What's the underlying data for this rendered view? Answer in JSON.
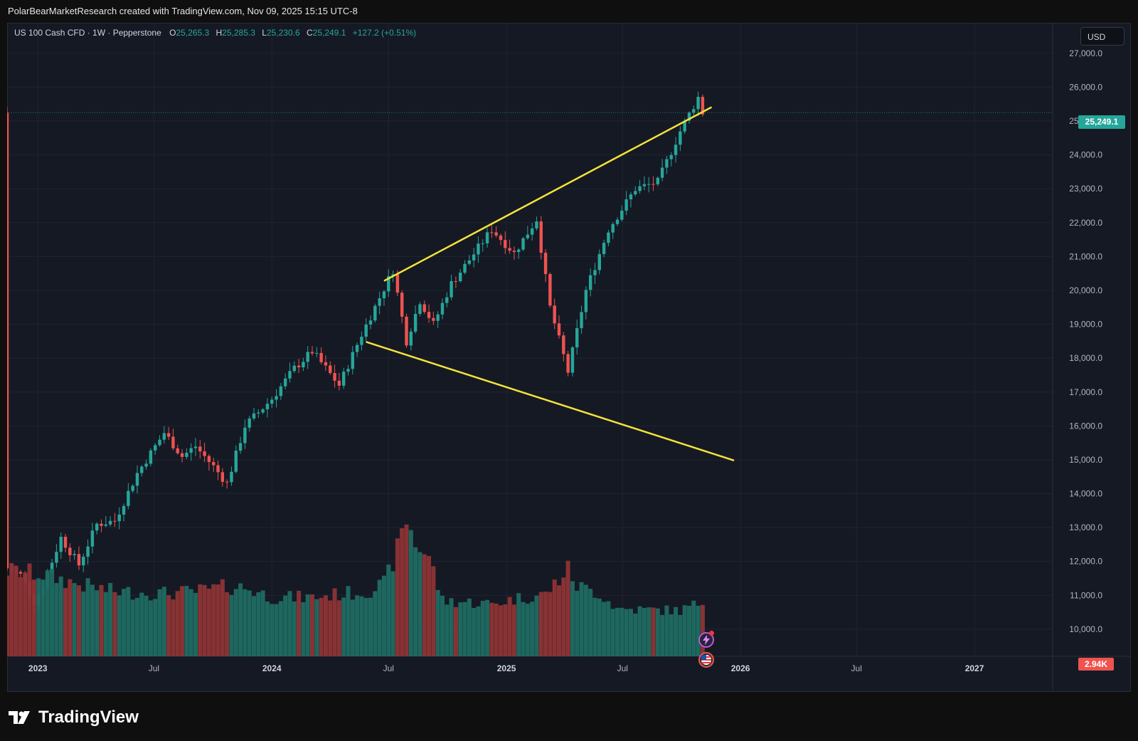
{
  "header": {
    "attribution": "PolarBearMarketResearch created with TradingView.com, Nov 09, 2025 15:15 UTC-8"
  },
  "legend": {
    "symbol": "US 100 Cash CFD · 1W · Pepperstone",
    "o_label": "O",
    "o_value": "25,265.3",
    "h_label": "H",
    "h_value": "25,285.3",
    "l_label": "L",
    "l_value": "25,230.6",
    "c_label": "C",
    "c_value": "25,249.1",
    "change": "+127.2 (+0.51%)"
  },
  "currency_button": "USD",
  "price_tag": "25,249.1",
  "volume_tag": "2.94K",
  "brand": {
    "name": "TradingView"
  },
  "colors": {
    "background": "#151924",
    "up": "#26a69a",
    "down": "#ef5350",
    "trendline": "#f5e23b",
    "grid": "#1f2430",
    "axis_text": "#b2b5be"
  },
  "icons": {
    "bolt": "lightning-bolt-icon",
    "flag": "us-flag-icon",
    "logo": "tradingview-logo-icon"
  },
  "chart_data": {
    "type": "candlestick",
    "timeframe": "1W",
    "y_ticks": [
      "27,000.0",
      "26,000.0",
      "25,000.0",
      "24,000.0",
      "23,000.0",
      "22,000.0",
      "21,000.0",
      "20,000.0",
      "19,000.0",
      "18,000.0",
      "17,000.0",
      "16,000.0",
      "15,000.0",
      "14,000.0",
      "13,000.0",
      "12,000.0",
      "11,000.0",
      "10,000.0"
    ],
    "y_tick_values": [
      27000,
      26000,
      25000,
      24000,
      23000,
      22000,
      21000,
      20000,
      19000,
      18000,
      17000,
      16000,
      15000,
      14000,
      13000,
      12000,
      11000,
      10000
    ],
    "ylim": [
      9200,
      27900
    ],
    "x_ticks": [
      {
        "label": "2023",
        "date": "2023-01-01",
        "bold": true
      },
      {
        "label": "Jul",
        "date": "2023-07-01",
        "bold": false
      },
      {
        "label": "2024",
        "date": "2024-01-01",
        "bold": true
      },
      {
        "label": "Jul",
        "date": "2024-07-01",
        "bold": false
      },
      {
        "label": "2025",
        "date": "2025-01-01",
        "bold": true
      },
      {
        "label": "Jul",
        "date": "2025-07-01",
        "bold": false
      },
      {
        "label": "2026",
        "date": "2026-01-01",
        "bold": true
      },
      {
        "label": "Jul",
        "date": "2026-07-01",
        "bold": false
      },
      {
        "label": "2027",
        "date": "2027-01-01",
        "bold": true
      }
    ],
    "xlim": [
      "2022-11-14",
      "2027-05-03"
    ],
    "last_price": 25249.1,
    "price_anchors": [
      [
        "2022-11-14",
        11800
      ],
      [
        "2022-12-05",
        11600
      ],
      [
        "2022-12-26",
        10800
      ],
      [
        "2023-01-09",
        11300
      ],
      [
        "2023-02-06",
        12700
      ],
      [
        "2023-03-06",
        11900
      ],
      [
        "2023-04-03",
        13100
      ],
      [
        "2023-05-01",
        13200
      ],
      [
        "2023-06-05",
        14600
      ],
      [
        "2023-07-17",
        15800
      ],
      [
        "2023-08-14",
        15100
      ],
      [
        "2023-09-04",
        15400
      ],
      [
        "2023-10-02",
        14800
      ],
      [
        "2023-10-23",
        14300
      ],
      [
        "2023-11-20",
        16000
      ],
      [
        "2024-01-01",
        16800
      ],
      [
        "2024-02-05",
        17700
      ],
      [
        "2024-03-04",
        18200
      ],
      [
        "2024-04-15",
        17200
      ],
      [
        "2024-05-20",
        18700
      ],
      [
        "2024-07-08",
        20600
      ],
      [
        "2024-07-29",
        18500
      ],
      [
        "2024-08-19",
        19700
      ],
      [
        "2024-09-09",
        19000
      ],
      [
        "2024-10-07",
        20200
      ],
      [
        "2024-11-04",
        20900
      ],
      [
        "2024-12-09",
        21800
      ],
      [
        "2025-01-13",
        21100
      ],
      [
        "2025-02-17",
        22100
      ],
      [
        "2025-03-10",
        19500
      ],
      [
        "2025-04-07",
        17600
      ],
      [
        "2025-05-05",
        20000
      ],
      [
        "2025-06-09",
        21800
      ],
      [
        "2025-07-21",
        23000
      ],
      [
        "2025-08-25",
        23200
      ],
      [
        "2025-09-29",
        24700
      ],
      [
        "2025-10-27",
        25700
      ],
      [
        "2025-11-03",
        25249
      ]
    ],
    "volume": {
      "ylim": [
        0,
        2000
      ],
      "anchors": [
        [
          "2022-11-14",
          1050
        ],
        [
          "2023-01-09",
          1000
        ],
        [
          "2023-03-06",
          880
        ],
        [
          "2023-05-01",
          790
        ],
        [
          "2023-07-17",
          770
        ],
        [
          "2023-09-04",
          790
        ],
        [
          "2023-10-23",
          850
        ],
        [
          "2023-11-20",
          840
        ],
        [
          "2024-01-01",
          720
        ],
        [
          "2024-03-04",
          720
        ],
        [
          "2024-04-15",
          760
        ],
        [
          "2024-05-27",
          790
        ],
        [
          "2024-06-24",
          880
        ],
        [
          "2024-07-15",
          1300
        ],
        [
          "2024-07-29",
          1680
        ],
        [
          "2024-08-12",
          1380
        ],
        [
          "2024-09-02",
          1220
        ],
        [
          "2024-09-23",
          680
        ],
        [
          "2024-11-04",
          660
        ],
        [
          "2024-12-09",
          640
        ],
        [
          "2025-01-13",
          700
        ],
        [
          "2025-03-03",
          760
        ],
        [
          "2025-04-07",
          1060
        ],
        [
          "2025-04-21",
          860
        ],
        [
          "2025-05-26",
          770
        ],
        [
          "2025-06-23",
          580
        ],
        [
          "2025-08-04",
          570
        ],
        [
          "2025-09-29",
          560
        ],
        [
          "2025-10-27",
          640
        ],
        [
          "2025-11-03",
          680
        ]
      ]
    },
    "trendlines": [
      {
        "name": "upper",
        "start": [
          "2024-06-24",
          20280
        ],
        "end": [
          "2025-11-17",
          25410
        ]
      },
      {
        "name": "lower",
        "start": [
          "2024-05-27",
          18480
        ],
        "end": [
          "2025-12-22",
          14980
        ]
      }
    ]
  }
}
